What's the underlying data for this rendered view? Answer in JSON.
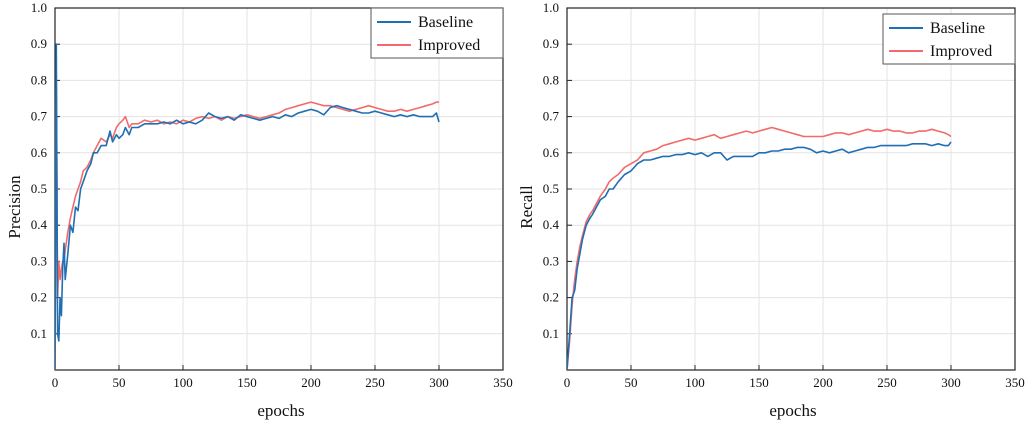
{
  "chart_data": [
    {
      "type": "line",
      "title": "",
      "xlabel": "epochs",
      "ylabel": "Precision",
      "xlim": [
        0,
        350
      ],
      "ylim": [
        0,
        1.0
      ],
      "xticks": [
        0,
        50,
        100,
        150,
        200,
        250,
        300,
        350
      ],
      "yticks": [
        0.1,
        0.2,
        0.3,
        0.4,
        0.5,
        0.6,
        0.7,
        0.8,
        0.9,
        1.0
      ],
      "xtick_labels": [
        "0",
        "50",
        "100",
        "150",
        "200",
        "250",
        "300",
        "350"
      ],
      "ytick_labels": [
        "0.1",
        "0.2",
        "0.3",
        "0.4",
        "0.5",
        "0.6",
        "0.7",
        "0.8",
        "0.9",
        "1.0"
      ],
      "grid": true,
      "legend_position": "top-right",
      "series": [
        {
          "name": "Baseline",
          "color": "#1f6fb4",
          "x": [
            0,
            1,
            2,
            3,
            4,
            5,
            6,
            7,
            8,
            10,
            12,
            14,
            16,
            18,
            20,
            22,
            25,
            28,
            30,
            33,
            36,
            40,
            43,
            45,
            48,
            50,
            53,
            55,
            58,
            60,
            65,
            70,
            75,
            80,
            85,
            90,
            95,
            100,
            105,
            110,
            115,
            120,
            125,
            130,
            135,
            140,
            145,
            150,
            155,
            160,
            165,
            170,
            175,
            180,
            185,
            190,
            195,
            200,
            205,
            210,
            215,
            220,
            225,
            230,
            235,
            240,
            245,
            250,
            255,
            260,
            265,
            270,
            275,
            280,
            285,
            290,
            295,
            298,
            300
          ],
          "y": [
            0.0,
            0.9,
            0.1,
            0.08,
            0.2,
            0.15,
            0.28,
            0.35,
            0.25,
            0.32,
            0.4,
            0.38,
            0.45,
            0.44,
            0.5,
            0.52,
            0.55,
            0.57,
            0.6,
            0.6,
            0.62,
            0.62,
            0.66,
            0.63,
            0.65,
            0.64,
            0.65,
            0.67,
            0.65,
            0.67,
            0.67,
            0.68,
            0.68,
            0.68,
            0.685,
            0.68,
            0.69,
            0.68,
            0.685,
            0.68,
            0.69,
            0.71,
            0.7,
            0.695,
            0.7,
            0.69,
            0.705,
            0.7,
            0.695,
            0.69,
            0.695,
            0.7,
            0.695,
            0.705,
            0.7,
            0.71,
            0.715,
            0.72,
            0.715,
            0.705,
            0.725,
            0.73,
            0.725,
            0.72,
            0.715,
            0.71,
            0.71,
            0.715,
            0.71,
            0.705,
            0.7,
            0.705,
            0.7,
            0.705,
            0.7,
            0.7,
            0.7,
            0.71,
            0.685
          ]
        },
        {
          "name": "Improved",
          "color": "#f26b6b",
          "x": [
            0,
            1,
            2,
            3,
            4,
            5,
            6,
            7,
            8,
            10,
            12,
            14,
            16,
            18,
            20,
            22,
            25,
            28,
            30,
            33,
            36,
            40,
            43,
            45,
            48,
            50,
            53,
            55,
            58,
            60,
            65,
            70,
            75,
            80,
            85,
            90,
            95,
            100,
            105,
            110,
            115,
            120,
            125,
            130,
            135,
            140,
            145,
            150,
            155,
            160,
            165,
            170,
            175,
            180,
            185,
            190,
            195,
            200,
            205,
            210,
            215,
            220,
            225,
            230,
            235,
            240,
            245,
            250,
            255,
            260,
            265,
            270,
            275,
            280,
            285,
            290,
            295,
            298,
            300
          ],
          "y": [
            0.0,
            0.8,
            0.2,
            0.3,
            0.25,
            0.28,
            0.3,
            0.3,
            0.33,
            0.38,
            0.42,
            0.45,
            0.48,
            0.5,
            0.52,
            0.55,
            0.56,
            0.58,
            0.6,
            0.62,
            0.64,
            0.63,
            0.65,
            0.64,
            0.67,
            0.68,
            0.69,
            0.7,
            0.67,
            0.68,
            0.68,
            0.69,
            0.685,
            0.69,
            0.68,
            0.685,
            0.68,
            0.69,
            0.685,
            0.695,
            0.7,
            0.695,
            0.7,
            0.69,
            0.7,
            0.695,
            0.7,
            0.705,
            0.7,
            0.695,
            0.7,
            0.705,
            0.71,
            0.72,
            0.725,
            0.73,
            0.735,
            0.74,
            0.735,
            0.73,
            0.73,
            0.725,
            0.72,
            0.715,
            0.72,
            0.725,
            0.73,
            0.725,
            0.72,
            0.715,
            0.715,
            0.72,
            0.715,
            0.72,
            0.725,
            0.73,
            0.735,
            0.74,
            0.74
          ]
        }
      ]
    },
    {
      "type": "line",
      "title": "",
      "xlabel": "epochs",
      "ylabel": "Recall",
      "xlim": [
        0,
        350
      ],
      "ylim": [
        0,
        1.0
      ],
      "xticks": [
        0,
        50,
        100,
        150,
        200,
        250,
        300,
        350
      ],
      "yticks": [
        0.1,
        0.2,
        0.3,
        0.4,
        0.5,
        0.6,
        0.7,
        0.8,
        0.9,
        1.0
      ],
      "xtick_labels": [
        "0",
        "50",
        "100",
        "150",
        "200",
        "250",
        "300",
        "350"
      ],
      "ytick_labels": [
        "0.1",
        "0.2",
        "0.3",
        "0.4",
        "0.5",
        "0.6",
        "0.7",
        "0.8",
        "0.9",
        "1.0"
      ],
      "grid": true,
      "legend_position": "top-right",
      "series": [
        {
          "name": "Baseline",
          "color": "#1f6fb4",
          "x": [
            0,
            2,
            4,
            6,
            8,
            10,
            12,
            15,
            18,
            20,
            23,
            26,
            30,
            33,
            36,
            40,
            45,
            50,
            55,
            60,
            65,
            70,
            75,
            80,
            85,
            90,
            95,
            100,
            105,
            110,
            115,
            120,
            125,
            130,
            135,
            140,
            145,
            150,
            155,
            160,
            165,
            170,
            175,
            180,
            185,
            190,
            195,
            200,
            205,
            210,
            215,
            220,
            225,
            230,
            235,
            240,
            245,
            250,
            255,
            260,
            265,
            270,
            275,
            280,
            285,
            290,
            295,
            298,
            300
          ],
          "y": [
            0.0,
            0.1,
            0.2,
            0.22,
            0.28,
            0.32,
            0.36,
            0.4,
            0.42,
            0.43,
            0.45,
            0.47,
            0.48,
            0.5,
            0.5,
            0.52,
            0.54,
            0.55,
            0.57,
            0.58,
            0.58,
            0.585,
            0.59,
            0.59,
            0.595,
            0.595,
            0.6,
            0.595,
            0.6,
            0.59,
            0.6,
            0.6,
            0.58,
            0.59,
            0.59,
            0.59,
            0.59,
            0.6,
            0.6,
            0.605,
            0.605,
            0.61,
            0.61,
            0.615,
            0.615,
            0.61,
            0.6,
            0.605,
            0.6,
            0.605,
            0.61,
            0.6,
            0.605,
            0.61,
            0.615,
            0.615,
            0.62,
            0.62,
            0.62,
            0.62,
            0.62,
            0.625,
            0.625,
            0.625,
            0.62,
            0.625,
            0.62,
            0.62,
            0.63
          ]
        },
        {
          "name": "Improved",
          "color": "#f26b6b",
          "x": [
            0,
            2,
            4,
            6,
            8,
            10,
            12,
            15,
            18,
            20,
            23,
            26,
            30,
            33,
            36,
            40,
            45,
            50,
            55,
            60,
            65,
            70,
            75,
            80,
            85,
            90,
            95,
            100,
            105,
            110,
            115,
            120,
            125,
            130,
            135,
            140,
            145,
            150,
            155,
            160,
            165,
            170,
            175,
            180,
            185,
            190,
            195,
            200,
            205,
            210,
            215,
            220,
            225,
            230,
            235,
            240,
            245,
            250,
            255,
            260,
            265,
            270,
            275,
            280,
            285,
            290,
            295,
            298,
            300
          ],
          "y": [
            0.0,
            0.08,
            0.18,
            0.25,
            0.3,
            0.34,
            0.37,
            0.41,
            0.43,
            0.44,
            0.46,
            0.48,
            0.5,
            0.52,
            0.53,
            0.54,
            0.56,
            0.57,
            0.58,
            0.6,
            0.605,
            0.61,
            0.62,
            0.625,
            0.63,
            0.635,
            0.64,
            0.635,
            0.64,
            0.645,
            0.65,
            0.64,
            0.645,
            0.65,
            0.655,
            0.66,
            0.655,
            0.66,
            0.665,
            0.67,
            0.665,
            0.66,
            0.655,
            0.65,
            0.645,
            0.645,
            0.645,
            0.645,
            0.65,
            0.655,
            0.655,
            0.65,
            0.655,
            0.66,
            0.665,
            0.66,
            0.66,
            0.665,
            0.66,
            0.66,
            0.655,
            0.655,
            0.66,
            0.66,
            0.665,
            0.66,
            0.655,
            0.65,
            0.645
          ]
        }
      ]
    }
  ]
}
